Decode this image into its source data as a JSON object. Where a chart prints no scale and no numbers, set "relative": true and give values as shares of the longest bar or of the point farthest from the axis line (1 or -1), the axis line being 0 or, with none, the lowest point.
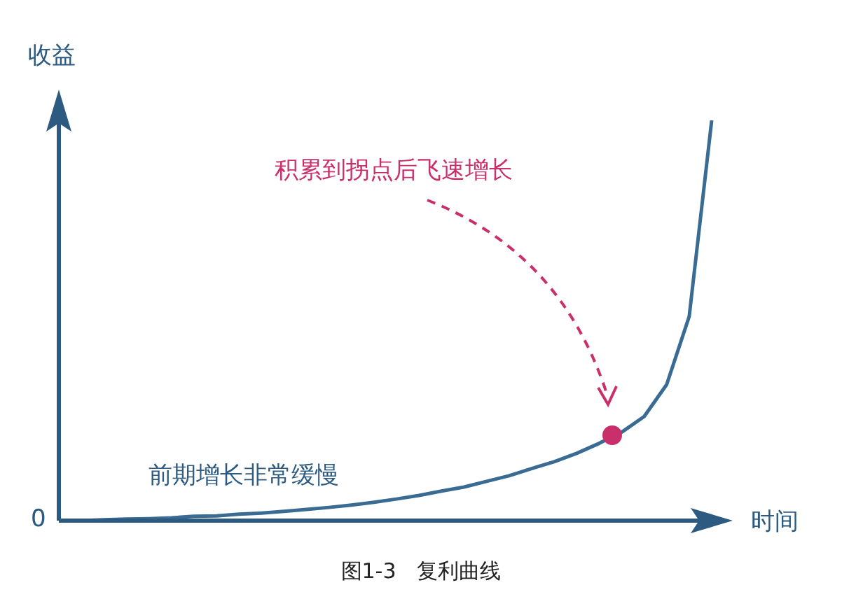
{
  "chart_data": {
    "type": "line",
    "relative": true,
    "title": "图1-3　复利曲线",
    "xlabel": "时间",
    "ylabel": "收益",
    "marker": "none",
    "color": "#3a6b93",
    "categories": [
      null,
      null,
      null,
      null,
      null,
      null,
      null,
      null,
      null,
      null,
      null,
      null,
      null,
      null,
      null,
      null,
      null,
      null,
      null,
      null,
      null,
      null,
      null,
      null,
      null,
      null,
      null,
      null,
      null,
      null
    ],
    "values": [
      0,
      0,
      0.002,
      0.004,
      0.005,
      0.007,
      0.011,
      0.012,
      0.016,
      0.019,
      0.023,
      0.028,
      0.033,
      0.039,
      0.046,
      0.054,
      0.063,
      0.074,
      0.084,
      0.098,
      0.112,
      0.13,
      0.147,
      0.168,
      0.193,
      0.221,
      0.26,
      0.34,
      0.51,
      1
    ],
    "annotations": [
      "0",
      "前期增长非常缓慢",
      "积累到拐点后飞速增长"
    ]
  }
}
